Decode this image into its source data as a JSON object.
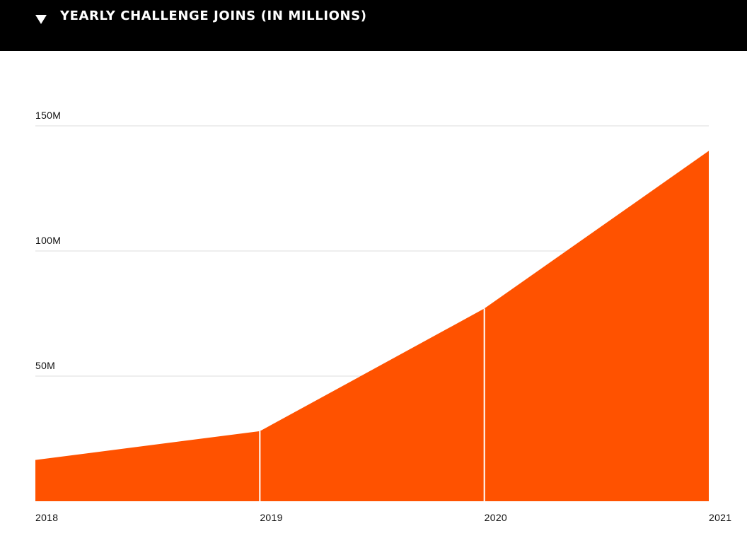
{
  "header": {
    "title": "YEARLY CHALLENGE JOINS (IN MILLIONS)",
    "toggle_icon": "triangle-down-icon"
  },
  "colors": {
    "background": "#ffffff",
    "header_bg": "#000000",
    "header_text": "#ffffff",
    "area_fill": "#ff5200",
    "gridline": "#dddddd",
    "divider": "#ffffff",
    "tick_text": "#111111"
  },
  "chart_data": {
    "type": "area",
    "title": "YEARLY CHALLENGE JOINS (IN MILLIONS)",
    "x": [
      "2018",
      "2019",
      "2020",
      "2021"
    ],
    "values": [
      16.5,
      28,
      77,
      140
    ],
    "ylim": [
      0,
      150
    ],
    "yticks": [
      50,
      100,
      150
    ],
    "ytick_labels": [
      "50M",
      "100M",
      "150M"
    ],
    "xlabel": "",
    "ylabel": "",
    "grid": true,
    "legend": "none"
  }
}
